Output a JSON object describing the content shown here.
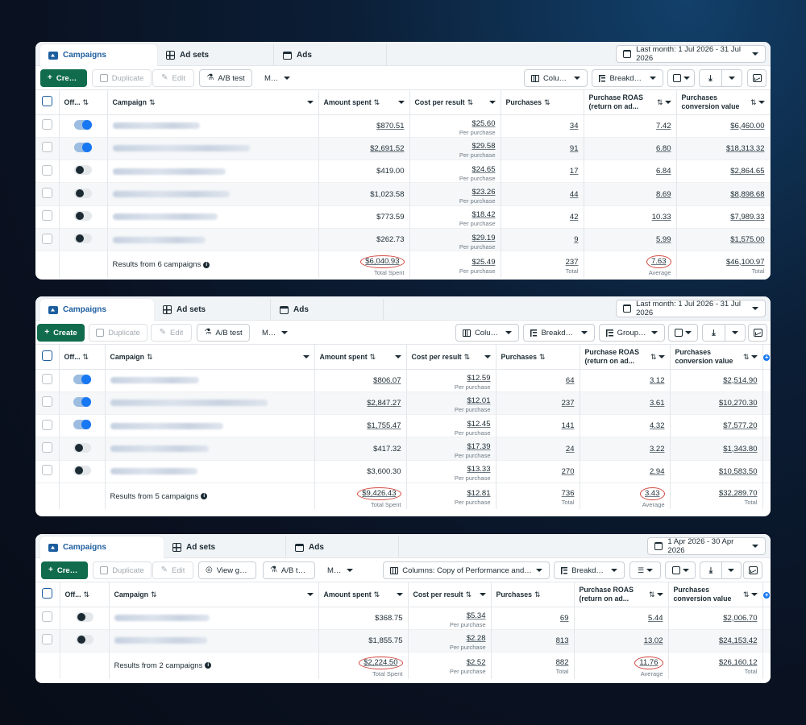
{
  "panels": [
    {
      "tabs": [
        "Campaigns",
        "Ad sets",
        "Ads"
      ],
      "date_range": "Last month: 1 Jul 2026 - 31 Jul 2026",
      "toolbar": {
        "create": "Create",
        "duplicate": "Duplicate",
        "edit": "Edit",
        "ab_test": "A/B test",
        "more": "More",
        "columns": "Columns",
        "breakdown": "Breakdown"
      },
      "headers": {
        "off_on": "Off...",
        "campaign": "Campaign",
        "amount_spent": "Amount spent",
        "cost_per_result": "Cost per result",
        "purchases": "Purchases",
        "roas": "Purchase ROAS (return on ad...",
        "conv_value": "Purchases conversion value"
      },
      "rows": [
        {
          "on": true,
          "spent": "$870.51",
          "cpr": "$25.60",
          "cpr_sub": "Per purchase",
          "purchases": "34",
          "roas": "7.42",
          "value": "$6,460.00"
        },
        {
          "on": true,
          "spent": "$2,691.52",
          "cpr": "$29.58",
          "cpr_sub": "Per purchase",
          "purchases": "91",
          "roas": "6.80",
          "value": "$18,313.32"
        },
        {
          "on": false,
          "spent": "$419.00",
          "cpr": "$24.65",
          "cpr_sub": "Per purchase",
          "purchases": "17",
          "roas": "6.84",
          "value": "$2,864.65"
        },
        {
          "on": false,
          "spent": "$1,023.58",
          "cpr": "$23.26",
          "cpr_sub": "Per purchase",
          "purchases": "44",
          "roas": "8.69",
          "value": "$8,898.68"
        },
        {
          "on": false,
          "spent": "$773.59",
          "cpr": "$18.42",
          "cpr_sub": "Per purchase",
          "purchases": "42",
          "roas": "10.33",
          "value": "$7,989.33"
        },
        {
          "on": false,
          "spent": "$262.73",
          "cpr": "$29.19",
          "cpr_sub": "Per purchase",
          "purchases": "9",
          "roas": "5.99",
          "value": "$1,575.00"
        }
      ],
      "summary": {
        "label": "Results from 6 campaigns",
        "spent": "$6,040.93",
        "spent_sub": "Total Spent",
        "cpr": "$25.49",
        "cpr_sub": "Per purchase",
        "purchases": "237",
        "purchases_sub": "Total",
        "roas": "7.63",
        "roas_sub": "Average",
        "value": "$46,100.97",
        "value_sub": "Total"
      }
    },
    {
      "tabs": [
        "Campaigns",
        "Ad sets",
        "Ads"
      ],
      "date_range": "Last month: 1 Jul 2026 - 31 Jul 2026",
      "toolbar": {
        "create": "Create",
        "duplicate": "Duplicate",
        "edit": "Edit",
        "ab_test": "A/B test",
        "more": "More",
        "columns": "Columns",
        "breakdown": "Breakdown",
        "grouping": "Grouping"
      },
      "headers": {
        "off_on": "Off...",
        "campaign": "Campaign",
        "amount_spent": "Amount spent",
        "cost_per_result": "Cost per result",
        "purchases": "Purchases",
        "roas": "Purchase ROAS (return on ad...",
        "conv_value": "Purchases conversion value"
      },
      "rows": [
        {
          "on": true,
          "spent": "$806.07",
          "cpr": "$12.59",
          "cpr_sub": "Per purchase",
          "purchases": "64",
          "roas": "3.12",
          "value": "$2,514.90"
        },
        {
          "on": true,
          "spent": "$2,847.27",
          "cpr": "$12.01",
          "cpr_sub": "Per purchase",
          "purchases": "237",
          "roas": "3.61",
          "value": "$10,270.30"
        },
        {
          "on": true,
          "spent": "$1,755.47",
          "cpr": "$12.45",
          "cpr_sub": "Per purchase",
          "purchases": "141",
          "roas": "4.32",
          "value": "$7,577.20"
        },
        {
          "on": false,
          "spent": "$417.32",
          "cpr": "$17.39",
          "cpr_sub": "Per purchase",
          "purchases": "24",
          "roas": "3.22",
          "value": "$1,343.80"
        },
        {
          "on": false,
          "spent": "$3,600.30",
          "cpr": "$13.33",
          "cpr_sub": "Per purchase",
          "purchases": "270",
          "roas": "2.94",
          "value": "$10,583.50"
        }
      ],
      "summary": {
        "label": "Results from 5 campaigns",
        "spent": "$9,426.43",
        "spent_sub": "Total Spent",
        "cpr": "$12.81",
        "cpr_sub": "Per purchase",
        "purchases": "736",
        "purchases_sub": "Total",
        "roas": "3.43",
        "roas_sub": "Average",
        "value": "$32,289.70",
        "value_sub": "Total"
      }
    },
    {
      "tabs": [
        "Campaigns",
        "Ad sets",
        "Ads"
      ],
      "date_range": "1 Apr 2026 - 30 Apr 2026",
      "toolbar": {
        "create": "Create",
        "duplicate": "Duplicate",
        "edit": "Edit",
        "view_goals": "View goals",
        "ab_test": "A/B test",
        "more": "More",
        "columns": "Columns: Copy of Performance and clic...",
        "breakdown": "Breakdown"
      },
      "headers": {
        "off_on": "Off...",
        "campaign": "Campaign",
        "amount_spent": "Amount spent",
        "cost_per_result": "Cost per result",
        "purchases": "Purchases",
        "roas": "Purchase ROAS (return on ad...",
        "conv_value": "Purchases conversion value"
      },
      "rows": [
        {
          "on": false,
          "spent": "$368.75",
          "cpr": "$5.34",
          "cpr_sub": "Per purchase",
          "purchases": "69",
          "roas": "5.44",
          "value": "$2,006.70"
        },
        {
          "on": false,
          "spent": "$1,855.75",
          "cpr": "$2.28",
          "cpr_sub": "Per purchase",
          "purchases": "813",
          "roas": "13.02",
          "value": "$24,153.42"
        }
      ],
      "summary": {
        "label": "Results from 2 campaigns",
        "spent": "$2,224.50",
        "spent_sub": "Total Spent",
        "cpr": "$2.52",
        "cpr_sub": "Per purchase",
        "purchases": "882",
        "purchases_sub": "Total",
        "roas": "11.76",
        "roas_sub": "Average",
        "value": "$26,160.12",
        "value_sub": "Total"
      }
    }
  ],
  "colors": {
    "create_green": "#116c4e",
    "active_blue": "#1d5e9f",
    "toggle_blue": "#1877f2",
    "annotation_red": "#d1453b"
  },
  "icons": {
    "campaigns": "folder-icon",
    "ad_sets": "grid-icon",
    "ads": "window-icon",
    "date": "calendar-icon"
  }
}
